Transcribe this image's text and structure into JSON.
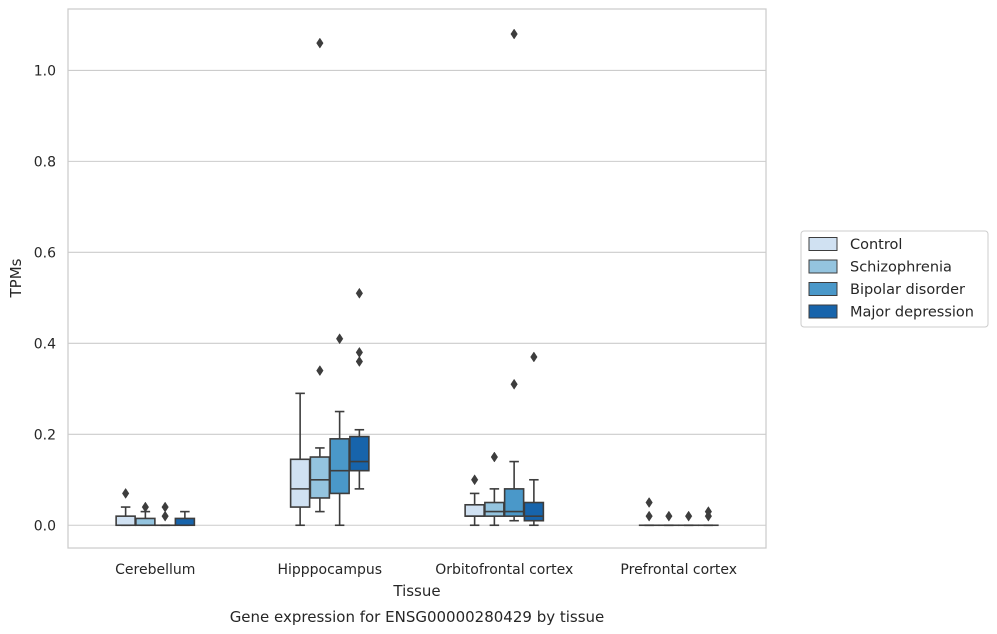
{
  "chart_data": {
    "type": "box",
    "title": "",
    "caption": "Gene expression for ENSG00000280429 by tissue",
    "xlabel": "Tissue",
    "ylabel": "TPMs",
    "categories": [
      "Cerebellum",
      "Hipppocampus",
      "Orbitofrontal cortex",
      "Prefrontal cortex"
    ],
    "ylim": [
      -0.05,
      1.135
    ],
    "yticks": [
      0.0,
      0.2,
      0.4,
      0.6,
      0.8,
      1.0
    ],
    "ytick_labels": [
      "0.0",
      "0.2",
      "0.4",
      "0.6",
      "0.8",
      "1.0"
    ],
    "grid": true,
    "legend_position": "right, outside plot",
    "series": [
      {
        "name": "Control",
        "color": "#d0e1f2",
        "boxes": [
          {
            "q1": 0.0,
            "median": 0.0,
            "q3": 0.02,
            "whisker_low": 0.0,
            "whisker_high": 0.04,
            "outliers": [
              0.07
            ]
          },
          {
            "q1": 0.04,
            "median": 0.08,
            "q3": 0.145,
            "whisker_low": 0.0,
            "whisker_high": 0.29,
            "outliers": []
          },
          {
            "q1": 0.02,
            "median": 0.02,
            "q3": 0.045,
            "whisker_low": 0.0,
            "whisker_high": 0.07,
            "outliers": [
              0.1
            ]
          },
          {
            "q1": 0.0,
            "median": 0.0,
            "q3": 0.0,
            "whisker_low": 0.0,
            "whisker_high": 0.0,
            "outliers": [
              0.02,
              0.05
            ]
          }
        ]
      },
      {
        "name": "Schizophrenia",
        "color": "#94c4df",
        "boxes": [
          {
            "q1": 0.0,
            "median": 0.0,
            "q3": 0.015,
            "whisker_low": 0.0,
            "whisker_high": 0.03,
            "outliers": [
              0.04
            ]
          },
          {
            "q1": 0.06,
            "median": 0.1,
            "q3": 0.15,
            "whisker_low": 0.03,
            "whisker_high": 0.17,
            "outliers": [
              0.34,
              1.06
            ]
          },
          {
            "q1": 0.02,
            "median": 0.03,
            "q3": 0.05,
            "whisker_low": 0.0,
            "whisker_high": 0.08,
            "outliers": [
              0.15
            ]
          },
          {
            "q1": 0.0,
            "median": 0.0,
            "q3": 0.0,
            "whisker_low": 0.0,
            "whisker_high": 0.0,
            "outliers": [
              0.02
            ]
          }
        ]
      },
      {
        "name": "Bipolar disorder",
        "color": "#4a98c9",
        "boxes": [
          {
            "q1": 0.0,
            "median": 0.0,
            "q3": 0.0,
            "whisker_low": 0.0,
            "whisker_high": 0.0,
            "outliers": [
              0.02,
              0.04
            ]
          },
          {
            "q1": 0.07,
            "median": 0.12,
            "q3": 0.19,
            "whisker_low": 0.0,
            "whisker_high": 0.25,
            "outliers": [
              0.41
            ]
          },
          {
            "q1": 0.02,
            "median": 0.03,
            "q3": 0.08,
            "whisker_low": 0.01,
            "whisker_high": 0.14,
            "outliers": [
              0.31,
              1.08
            ]
          },
          {
            "q1": 0.0,
            "median": 0.0,
            "q3": 0.0,
            "whisker_low": 0.0,
            "whisker_high": 0.0,
            "outliers": [
              0.02
            ]
          }
        ]
      },
      {
        "name": "Major depression",
        "color": "#1764ab",
        "boxes": [
          {
            "q1": 0.0,
            "median": 0.0,
            "q3": 0.015,
            "whisker_low": 0.0,
            "whisker_high": 0.03,
            "outliers": []
          },
          {
            "q1": 0.12,
            "median": 0.14,
            "q3": 0.195,
            "whisker_low": 0.08,
            "whisker_high": 0.21,
            "outliers": [
              0.36,
              0.38,
              0.51
            ]
          },
          {
            "q1": 0.01,
            "median": 0.02,
            "q3": 0.05,
            "whisker_low": 0.0,
            "whisker_high": 0.1,
            "outliers": [
              0.37
            ]
          },
          {
            "q1": 0.0,
            "median": 0.0,
            "q3": 0.0,
            "whisker_low": 0.0,
            "whisker_high": 0.0,
            "outliers": [
              0.02,
              0.03
            ]
          }
        ]
      }
    ]
  }
}
